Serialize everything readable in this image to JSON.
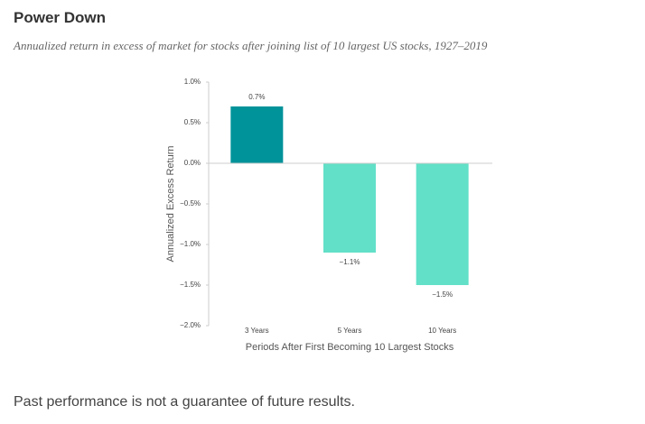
{
  "chart_data": {
    "type": "bar",
    "title": "Power Down",
    "subtitle": "Annualized return in excess of market for stocks after joining list of 10 largest US stocks, 1927–2019",
    "x_label": "Periods After First Becoming 10 Largest Stocks",
    "y_label": "Annualized Excess Return",
    "categories": [
      "3 Years",
      "5 Years",
      "10 Years"
    ],
    "values": [
      0.7,
      -1.1,
      -1.5
    ],
    "value_labels": [
      "0.7%",
      "−1.1%",
      "−1.5%"
    ],
    "colors": [
      "#00939a",
      "#62e0c8",
      "#62e0c8"
    ],
    "ylim": [
      -2,
      1
    ],
    "yticks": [
      {
        "value": 1,
        "label": "1.0%"
      },
      {
        "value": 0.5,
        "label": "0.5%"
      },
      {
        "value": 0,
        "label": "0.0%"
      },
      {
        "value": -0.5,
        "label": "−0.5%"
      },
      {
        "value": -1,
        "label": "−1.0%"
      },
      {
        "value": -1.5,
        "label": "−1.5%"
      },
      {
        "value": -2,
        "label": "−2.0%"
      }
    ],
    "footnote": "Past performance is not a guarantee of future results."
  }
}
